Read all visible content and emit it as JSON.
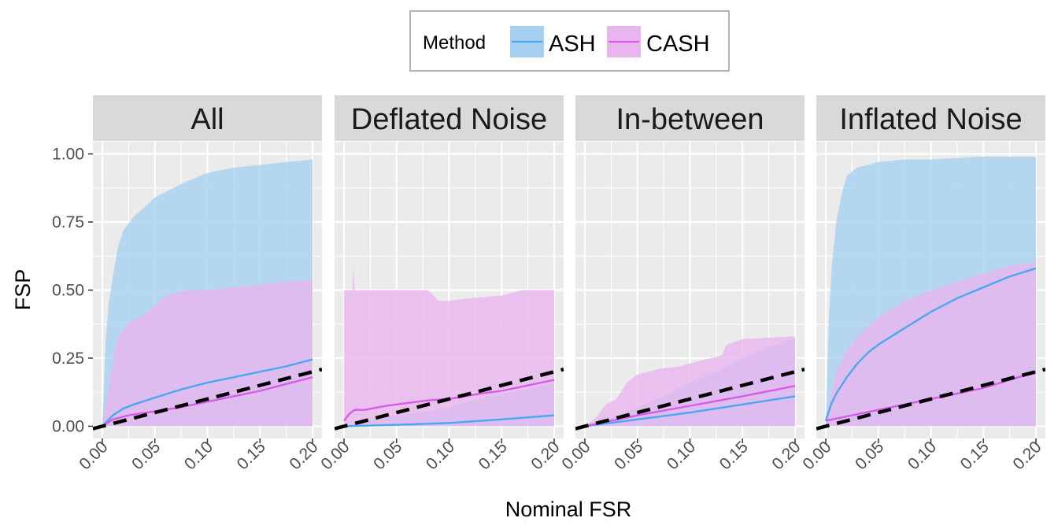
{
  "chart_data": {
    "type": "area",
    "xlabel": "Nominal FSR",
    "ylabel": "FSP",
    "xlim": [
      0,
      0.2
    ],
    "ylim": [
      0,
      1
    ],
    "x_ticks": [
      "0.00",
      "0.05",
      "0.10",
      "0.15",
      "0.20"
    ],
    "y_ticks": [
      "0.00",
      "0.25",
      "0.50",
      "0.75",
      "1.00"
    ],
    "grid": true,
    "legend": {
      "title": "Method",
      "position": "top",
      "entries": [
        {
          "label": "ASH",
          "line_color": "#4aa8f0",
          "fill_color": "#a5d0f0"
        },
        {
          "label": "CASH",
          "line_color": "#d65ce8",
          "fill_color": "#e9b5ee"
        }
      ]
    },
    "reference_line": {
      "type": "y=x",
      "style": "dashed",
      "color": "#000000"
    },
    "panels": [
      {
        "title": "All",
        "series": [
          {
            "name": "ASH",
            "mean": [
              [
                0,
                0
              ],
              [
                0.01,
                0.04
              ],
              [
                0.02,
                0.065
              ],
              [
                0.03,
                0.08
              ],
              [
                0.05,
                0.105
              ],
              [
                0.075,
                0.135
              ],
              [
                0.1,
                0.16
              ],
              [
                0.125,
                0.18
              ],
              [
                0.15,
                0.2
              ],
              [
                0.175,
                0.22
              ],
              [
                0.2,
                0.245
              ]
            ],
            "upper": [
              [
                0,
                0
              ],
              [
                0.003,
                0.3
              ],
              [
                0.006,
                0.45
              ],
              [
                0.01,
                0.55
              ],
              [
                0.015,
                0.66
              ],
              [
                0.02,
                0.72
              ],
              [
                0.03,
                0.77
              ],
              [
                0.05,
                0.84
              ],
              [
                0.075,
                0.89
              ],
              [
                0.1,
                0.93
              ],
              [
                0.125,
                0.95
              ],
              [
                0.15,
                0.96
              ],
              [
                0.175,
                0.97
              ],
              [
                0.2,
                0.98
              ]
            ],
            "lower": [
              [
                0,
                0
              ],
              [
                0.2,
                0
              ]
            ]
          },
          {
            "name": "CASH",
            "mean": [
              [
                0,
                0
              ],
              [
                0.01,
                0.025
              ],
              [
                0.025,
                0.04
              ],
              [
                0.05,
                0.055
              ],
              [
                0.075,
                0.07
              ],
              [
                0.1,
                0.09
              ],
              [
                0.125,
                0.11
              ],
              [
                0.15,
                0.13
              ],
              [
                0.175,
                0.155
              ],
              [
                0.2,
                0.18
              ]
            ],
            "upper": [
              [
                0,
                0
              ],
              [
                0.005,
                0.12
              ],
              [
                0.01,
                0.24
              ],
              [
                0.015,
                0.33
              ],
              [
                0.025,
                0.38
              ],
              [
                0.04,
                0.41
              ],
              [
                0.06,
                0.48
              ],
              [
                0.08,
                0.5
              ],
              [
                0.1,
                0.5
              ],
              [
                0.15,
                0.52
              ],
              [
                0.2,
                0.54
              ]
            ],
            "lower": [
              [
                0,
                0
              ],
              [
                0.2,
                0
              ]
            ]
          }
        ]
      },
      {
        "title": "Deflated Noise",
        "series": [
          {
            "name": "ASH",
            "mean": [
              [
                0,
                0
              ],
              [
                0.05,
                0.005
              ],
              [
                0.1,
                0.012
              ],
              [
                0.15,
                0.025
              ],
              [
                0.2,
                0.04
              ]
            ],
            "upper": [
              [
                0,
                0
              ],
              [
                0.02,
                0.02
              ],
              [
                0.05,
                0.04
              ],
              [
                0.08,
                0.055
              ],
              [
                0.1,
                0.07
              ],
              [
                0.13,
                0.1
              ],
              [
                0.15,
                0.12
              ],
              [
                0.18,
                0.14
              ],
              [
                0.2,
                0.16
              ]
            ],
            "lower": [
              [
                0,
                0
              ],
              [
                0.2,
                0
              ]
            ]
          },
          {
            "name": "CASH",
            "mean": [
              [
                0,
                0.02
              ],
              [
                0.005,
                0.045
              ],
              [
                0.01,
                0.06
              ],
              [
                0.02,
                0.06
              ],
              [
                0.04,
                0.075
              ],
              [
                0.06,
                0.085
              ],
              [
                0.08,
                0.095
              ],
              [
                0.1,
                0.1
              ],
              [
                0.13,
                0.12
              ],
              [
                0.15,
                0.13
              ],
              [
                0.175,
                0.15
              ],
              [
                0.2,
                0.17
              ]
            ],
            "upper": [
              [
                0,
                0.5
              ],
              [
                0.008,
                0.5
              ],
              [
                0.009,
                0.59
              ],
              [
                0.01,
                0.5
              ],
              [
                0.08,
                0.5
              ],
              [
                0.09,
                0.46
              ],
              [
                0.1,
                0.46
              ],
              [
                0.12,
                0.47
              ],
              [
                0.15,
                0.48
              ],
              [
                0.17,
                0.5
              ],
              [
                0.2,
                0.5
              ]
            ],
            "lower": [
              [
                0,
                0
              ],
              [
                0.2,
                0
              ]
            ]
          }
        ]
      },
      {
        "title": "In-between",
        "series": [
          {
            "name": "ASH",
            "mean": [
              [
                0,
                0
              ],
              [
                0.05,
                0.025
              ],
              [
                0.1,
                0.05
              ],
              [
                0.15,
                0.08
              ],
              [
                0.2,
                0.11
              ]
            ],
            "upper": [
              [
                0,
                0
              ],
              [
                0.025,
                0.03
              ],
              [
                0.05,
                0.07
              ],
              [
                0.075,
                0.11
              ],
              [
                0.1,
                0.16
              ],
              [
                0.125,
                0.2
              ],
              [
                0.15,
                0.25
              ],
              [
                0.175,
                0.29
              ],
              [
                0.2,
                0.32
              ]
            ],
            "lower": [
              [
                0,
                0
              ],
              [
                0.2,
                0
              ]
            ]
          },
          {
            "name": "CASH",
            "mean": [
              [
                0,
                0
              ],
              [
                0.05,
                0.04
              ],
              [
                0.1,
                0.075
              ],
              [
                0.15,
                0.11
              ],
              [
                0.2,
                0.148
              ]
            ],
            "upper": [
              [
                0,
                0
              ],
              [
                0.01,
                0.03
              ],
              [
                0.02,
                0.08
              ],
              [
                0.03,
                0.1
              ],
              [
                0.04,
                0.16
              ],
              [
                0.05,
                0.19
              ],
              [
                0.07,
                0.21
              ],
              [
                0.09,
                0.22
              ],
              [
                0.11,
                0.24
              ],
              [
                0.13,
                0.26
              ],
              [
                0.135,
                0.3
              ],
              [
                0.15,
                0.32
              ],
              [
                0.2,
                0.33
              ]
            ],
            "lower": [
              [
                0,
                0
              ],
              [
                0.2,
                0
              ]
            ]
          }
        ]
      },
      {
        "title": "Inflated Noise",
        "series": [
          {
            "name": "ASH",
            "mean": [
              [
                0,
                0.02
              ],
              [
                0.005,
                0.08
              ],
              [
                0.01,
                0.12
              ],
              [
                0.02,
                0.18
              ],
              [
                0.03,
                0.23
              ],
              [
                0.04,
                0.27
              ],
              [
                0.05,
                0.3
              ],
              [
                0.075,
                0.36
              ],
              [
                0.1,
                0.42
              ],
              [
                0.125,
                0.47
              ],
              [
                0.15,
                0.51
              ],
              [
                0.175,
                0.55
              ],
              [
                0.2,
                0.58
              ]
            ],
            "upper": [
              [
                0,
                0
              ],
              [
                0.003,
                0.4
              ],
              [
                0.006,
                0.6
              ],
              [
                0.01,
                0.75
              ],
              [
                0.015,
                0.85
              ],
              [
                0.02,
                0.92
              ],
              [
                0.03,
                0.95
              ],
              [
                0.05,
                0.97
              ],
              [
                0.075,
                0.98
              ],
              [
                0.1,
                0.98
              ],
              [
                0.15,
                0.99
              ],
              [
                0.2,
                0.99
              ]
            ],
            "lower": [
              [
                0,
                0
              ],
              [
                0.2,
                0
              ]
            ]
          },
          {
            "name": "CASH",
            "mean": [
              [
                0,
                0.02
              ],
              [
                0.025,
                0.04
              ],
              [
                0.05,
                0.06
              ],
              [
                0.075,
                0.08
              ],
              [
                0.1,
                0.1
              ],
              [
                0.125,
                0.12
              ],
              [
                0.15,
                0.14
              ],
              [
                0.175,
                0.17
              ],
              [
                0.2,
                0.2
              ]
            ],
            "upper": [
              [
                0,
                0.02
              ],
              [
                0.005,
                0.12
              ],
              [
                0.01,
                0.2
              ],
              [
                0.02,
                0.28
              ],
              [
                0.03,
                0.33
              ],
              [
                0.05,
                0.4
              ],
              [
                0.075,
                0.46
              ],
              [
                0.1,
                0.5
              ],
              [
                0.125,
                0.53
              ],
              [
                0.15,
                0.56
              ],
              [
                0.175,
                0.59
              ],
              [
                0.2,
                0.6
              ]
            ],
            "lower": [
              [
                0,
                0
              ],
              [
                0.2,
                0
              ]
            ]
          }
        ]
      }
    ]
  }
}
